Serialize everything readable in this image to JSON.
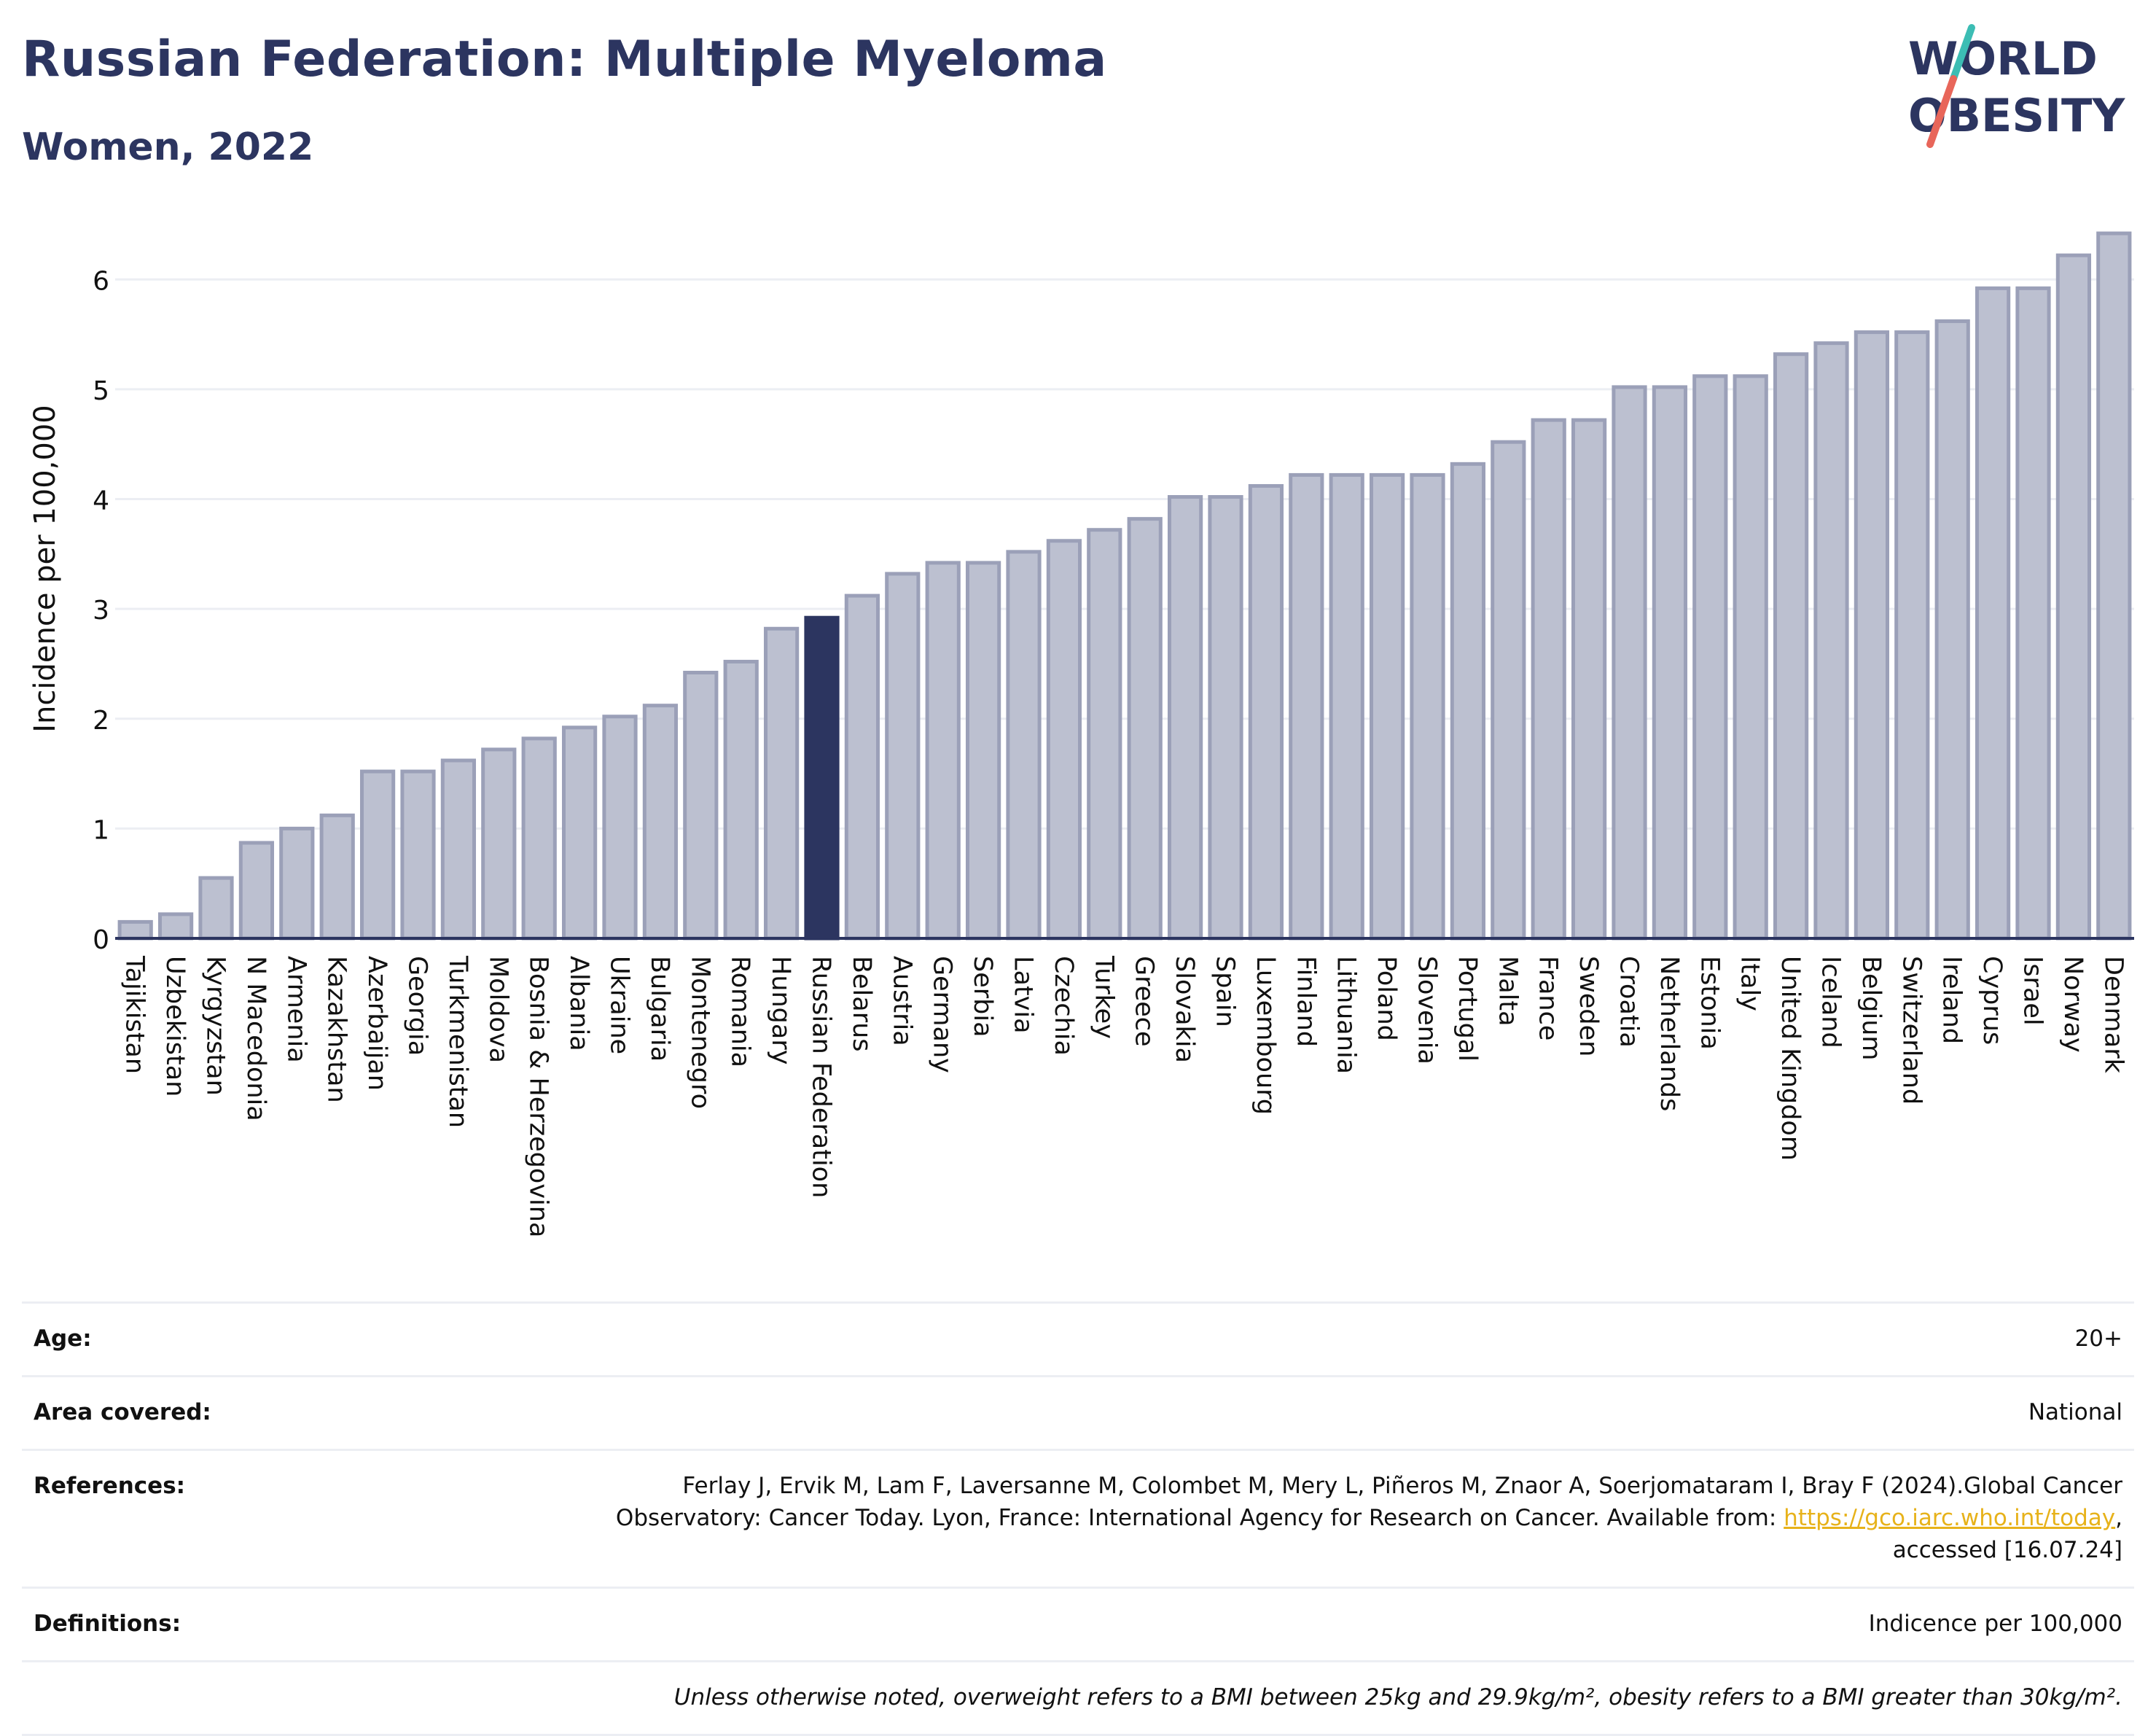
{
  "header": {
    "title": "Russian Federation: Multiple Myeloma",
    "subtitle": "Women, 2022"
  },
  "logo": {
    "line1": "WORLD",
    "line2": "OBESITY",
    "colors": {
      "text": "#2c3560",
      "slash_top": "#3cbdb4",
      "slash_bottom": "#e8665a"
    }
  },
  "colors": {
    "bar": "#bcc0d0",
    "bar_stroke": "#9ba0b8",
    "highlight": "#2c3560",
    "axis": "#2c3560",
    "grid": "#eceef3"
  },
  "chart_data": {
    "type": "bar",
    "title": "",
    "xlabel": "",
    "ylabel": "Incidence per 100,000",
    "ylim": [
      0,
      6.5
    ],
    "yticks": [
      0,
      1,
      2,
      3,
      4,
      5,
      6
    ],
    "grid": true,
    "highlight_category": "Russian Federation",
    "categories": [
      "Tajikistan",
      "Uzbekistan",
      "Kyrgyzstan",
      "N Macedonia",
      "Armenia",
      "Kazakhstan",
      "Azerbaijan",
      "Georgia",
      "Turkmenistan",
      "Moldova",
      "Bosnia & Herzegovina",
      "Albania",
      "Ukraine",
      "Bulgaria",
      "Montenegro",
      "Romania",
      "Hungary",
      "Russian Federation",
      "Belarus",
      "Austria",
      "Germany",
      "Serbia",
      "Latvia",
      "Czechia",
      "Turkey",
      "Greece",
      "Slovakia",
      "Spain",
      "Luxembourg",
      "Finland",
      "Lithuania",
      "Poland",
      "Slovenia",
      "Portugal",
      "Malta",
      "France",
      "Sweden",
      "Croatia",
      "Netherlands",
      "Estonia",
      "Italy",
      "United Kingdom",
      "Iceland",
      "Belgium",
      "Switzerland",
      "Ireland",
      "Cyprus",
      "Israel",
      "Norway",
      "Denmark"
    ],
    "values": [
      0.15,
      0.22,
      0.55,
      0.87,
      1.0,
      1.12,
      1.52,
      1.52,
      1.62,
      1.72,
      1.82,
      1.92,
      2.02,
      2.12,
      2.42,
      2.52,
      2.82,
      2.92,
      3.12,
      3.32,
      3.42,
      3.42,
      3.52,
      3.62,
      3.72,
      3.82,
      4.02,
      4.02,
      4.12,
      4.22,
      4.22,
      4.22,
      4.22,
      4.32,
      4.52,
      4.72,
      4.72,
      5.02,
      5.02,
      5.12,
      5.12,
      5.32,
      5.42,
      5.52,
      5.52,
      5.62,
      5.92,
      5.92,
      6.22,
      6.42
    ]
  },
  "info": {
    "age_label": "Age:",
    "age_value": "20+",
    "area_label": "Area covered:",
    "area_value": "National",
    "references_label": "References:",
    "references_text": "Ferlay J, Ervik M, Lam F, Laversanne M, Colombet M, Mery L, Piñeros M, Znaor A, Soerjomataram I, Bray F (2024).Global Cancer Observatory: Cancer Today. Lyon, France: International Agency for Research on Cancer. Available from:",
    "references_link": "https://gco.iarc.who.int/today",
    "references_suffix": ", accessed [16.07.24]",
    "definitions_label": "Definitions:",
    "definitions_value": "Indicence per 100,000",
    "note": "Unless otherwise noted, overweight refers to a BMI between 25kg and 29.9kg/m², obesity refers to a BMI greater than 30kg/m²."
  }
}
